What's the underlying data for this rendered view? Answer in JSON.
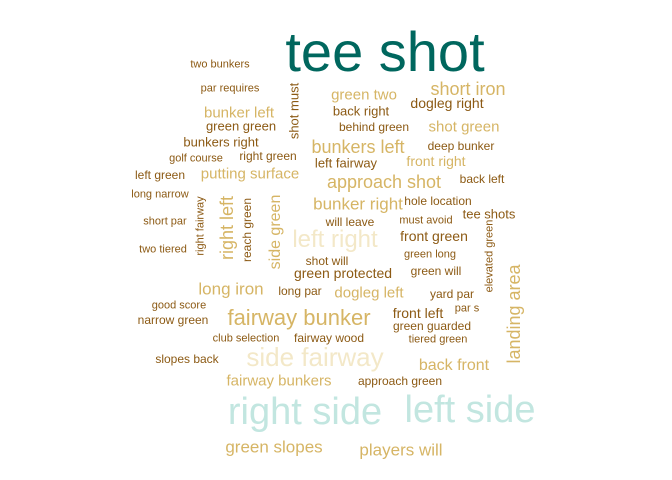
{
  "colors": {
    "c0": "#00675e",
    "c1": "#8c5a14",
    "c2": "#d6b565",
    "c3": "#f3e8c8",
    "c4": "#c2e6e0"
  },
  "words": [
    {
      "text": "tee shot",
      "size": 56,
      "color": "c0",
      "vertical": false
    },
    {
      "text": "right side",
      "size": 38,
      "color": "c4",
      "vertical": false
    },
    {
      "text": "left side",
      "size": 38,
      "color": "c4",
      "vertical": false
    },
    {
      "text": "side fairway",
      "size": 26,
      "color": "c3",
      "vertical": false
    },
    {
      "text": "left right",
      "size": 24,
      "color": "c3",
      "vertical": false
    },
    {
      "text": "fairway bunker",
      "size": 22,
      "color": "c2",
      "vertical": false
    },
    {
      "text": "approach shot",
      "size": 18,
      "color": "c2",
      "vertical": false
    },
    {
      "text": "short iron",
      "size": 18,
      "color": "c2",
      "vertical": false
    },
    {
      "text": "bunkers left",
      "size": 18,
      "color": "c2",
      "vertical": false
    },
    {
      "text": "bunker right",
      "size": 17,
      "color": "c2",
      "vertical": false
    },
    {
      "text": "long iron",
      "size": 17,
      "color": "c2",
      "vertical": false
    },
    {
      "text": "right left",
      "size": 18,
      "color": "c2",
      "vertical": true
    },
    {
      "text": "landing area",
      "size": 18,
      "color": "c2",
      "vertical": true
    },
    {
      "text": "side green",
      "size": 16,
      "color": "c2",
      "vertical": true
    },
    {
      "text": "green slopes",
      "size": 17,
      "color": "c2",
      "vertical": false
    },
    {
      "text": "players will",
      "size": 17,
      "color": "c2",
      "vertical": false
    },
    {
      "text": "fairway bunkers",
      "size": 15,
      "color": "c2",
      "vertical": false
    },
    {
      "text": "back front",
      "size": 16,
      "color": "c2",
      "vertical": false
    },
    {
      "text": "putting surface",
      "size": 15,
      "color": "c2",
      "vertical": false
    },
    {
      "text": "bunker left",
      "size": 15,
      "color": "c2",
      "vertical": false
    },
    {
      "text": "green two",
      "size": 15,
      "color": "c2",
      "vertical": false
    },
    {
      "text": "shot green",
      "size": 15,
      "color": "c2",
      "vertical": false
    },
    {
      "text": "dogleg left",
      "size": 15,
      "color": "c2",
      "vertical": false
    },
    {
      "text": "front right",
      "size": 14,
      "color": "c2",
      "vertical": false
    },
    {
      "text": "dogleg right",
      "size": 14,
      "color": "c1",
      "vertical": false
    },
    {
      "text": "front green",
      "size": 14,
      "color": "c1",
      "vertical": false
    },
    {
      "text": "front left",
      "size": 14,
      "color": "c1",
      "vertical": false
    },
    {
      "text": "green protected",
      "size": 14,
      "color": "c1",
      "vertical": false
    },
    {
      "text": "left fairway",
      "size": 13,
      "color": "c1",
      "vertical": false
    },
    {
      "text": "back right",
      "size": 13,
      "color": "c1",
      "vertical": false
    },
    {
      "text": "green green",
      "size": 13,
      "color": "c1",
      "vertical": false
    },
    {
      "text": "shot must",
      "size": 13,
      "color": "c1",
      "vertical": true
    },
    {
      "text": "behind green",
      "size": 12,
      "color": "c1",
      "vertical": false
    },
    {
      "text": "deep bunker",
      "size": 12,
      "color": "c1",
      "vertical": false
    },
    {
      "text": "bunkers right",
      "size": 13,
      "color": "c1",
      "vertical": false
    },
    {
      "text": "right green",
      "size": 12,
      "color": "c1",
      "vertical": false
    },
    {
      "text": "golf course",
      "size": 11,
      "color": "c1",
      "vertical": false
    },
    {
      "text": "left green",
      "size": 12,
      "color": "c1",
      "vertical": false
    },
    {
      "text": "back left",
      "size": 12,
      "color": "c1",
      "vertical": false
    },
    {
      "text": "hole location",
      "size": 12,
      "color": "c1",
      "vertical": false
    },
    {
      "text": "tee shots",
      "size": 13,
      "color": "c1",
      "vertical": false
    },
    {
      "text": "long narrow",
      "size": 11,
      "color": "c1",
      "vertical": false
    },
    {
      "text": "right fairway",
      "size": 11,
      "color": "c1",
      "vertical": true
    },
    {
      "text": "reach green",
      "size": 12,
      "color": "c1",
      "vertical": true
    },
    {
      "text": "will leave",
      "size": 12,
      "color": "c1",
      "vertical": false
    },
    {
      "text": "must avoid",
      "size": 11,
      "color": "c1",
      "vertical": false
    },
    {
      "text": "elevated green",
      "size": 11,
      "color": "c1",
      "vertical": true
    },
    {
      "text": "short par",
      "size": 11,
      "color": "c1",
      "vertical": false
    },
    {
      "text": "two tiered",
      "size": 11,
      "color": "c1",
      "vertical": false
    },
    {
      "text": "green long",
      "size": 11,
      "color": "c1",
      "vertical": false
    },
    {
      "text": "shot will",
      "size": 12,
      "color": "c1",
      "vertical": false
    },
    {
      "text": "green will",
      "size": 12,
      "color": "c1",
      "vertical": false
    },
    {
      "text": "long par",
      "size": 12,
      "color": "c1",
      "vertical": false
    },
    {
      "text": "yard par",
      "size": 12,
      "color": "c1",
      "vertical": false
    },
    {
      "text": "par s",
      "size": 11,
      "color": "c1",
      "vertical": false
    },
    {
      "text": "good score",
      "size": 11,
      "color": "c1",
      "vertical": false
    },
    {
      "text": "narrow green",
      "size": 12,
      "color": "c1",
      "vertical": false
    },
    {
      "text": "green guarded",
      "size": 12,
      "color": "c1",
      "vertical": false
    },
    {
      "text": "club selection",
      "size": 11,
      "color": "c1",
      "vertical": false
    },
    {
      "text": "fairway wood",
      "size": 12,
      "color": "c1",
      "vertical": false
    },
    {
      "text": "tiered green",
      "size": 11,
      "color": "c1",
      "vertical": false
    },
    {
      "text": "slopes back",
      "size": 12,
      "color": "c1",
      "vertical": false
    },
    {
      "text": "approach green",
      "size": 12,
      "color": "c1",
      "vertical": false
    },
    {
      "text": "two bunkers",
      "size": 11,
      "color": "c1",
      "vertical": false
    },
    {
      "text": "par requires",
      "size": 11,
      "color": "c1",
      "vertical": false
    }
  ]
}
